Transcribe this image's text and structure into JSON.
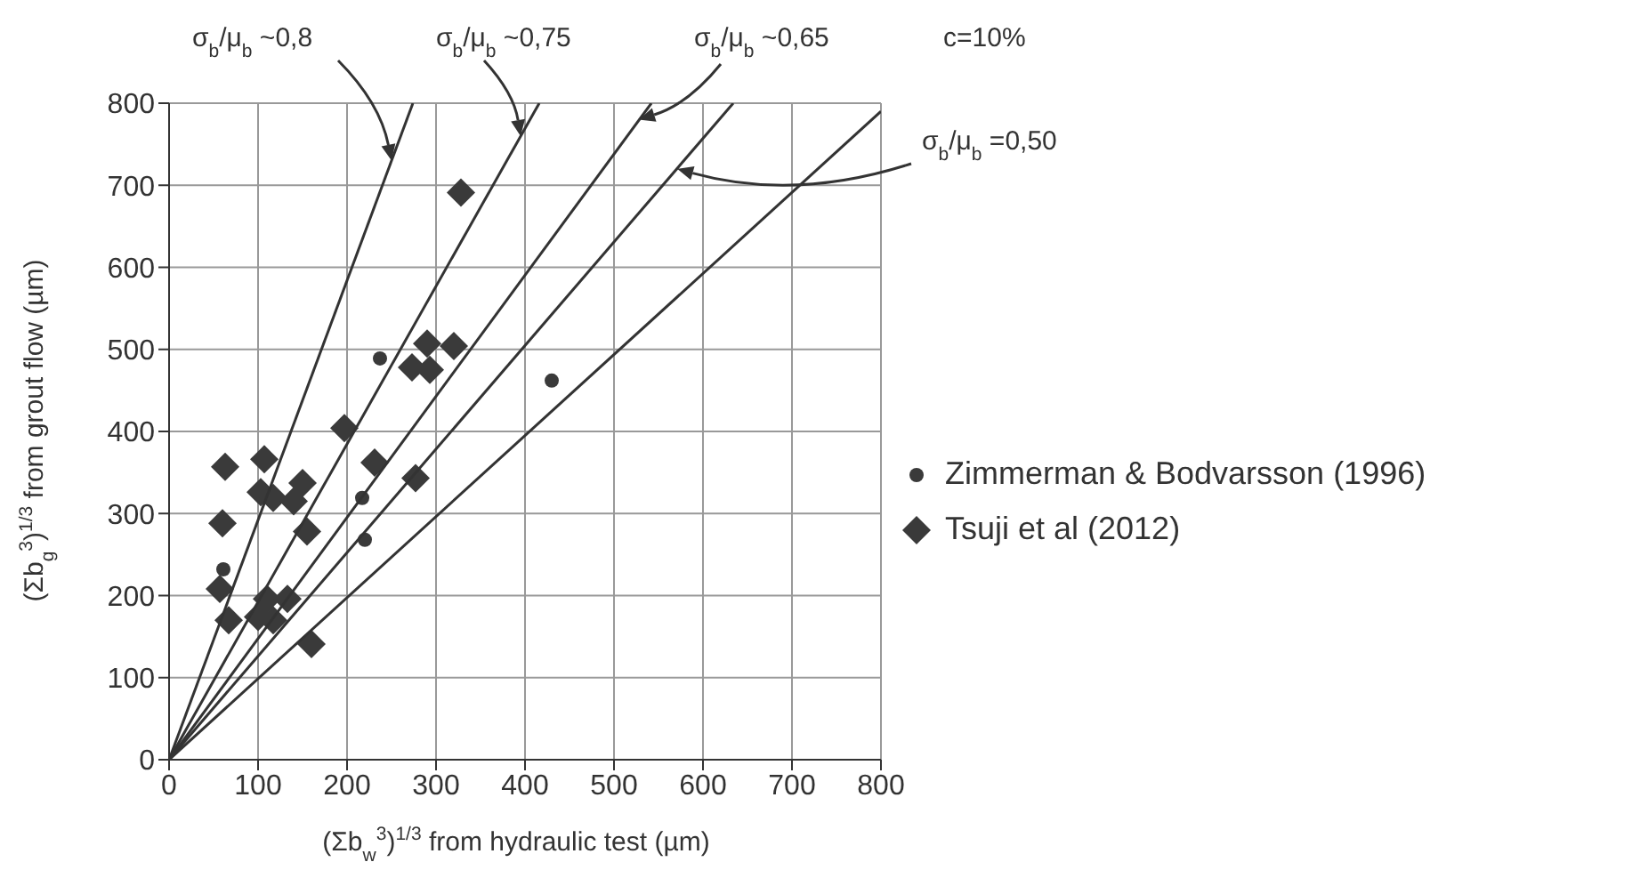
{
  "chart_data": {
    "type": "scatter",
    "xlabel": "(Σb$_{w}$$^{3}$)$^{1/3}$ from hydraulic test (µm)",
    "ylabel": "(Σb$_{g}$$^{3}$)$^{1/3}$ from grout flow (µm)",
    "xlim": [
      0,
      800
    ],
    "ylim": [
      0,
      800
    ],
    "xticks": [
      0,
      100,
      200,
      300,
      400,
      500,
      600,
      700,
      800
    ],
    "yticks": [
      0,
      100,
      200,
      300,
      400,
      500,
      600,
      700,
      800
    ],
    "grid": true,
    "legend": "right",
    "annotations": [
      {
        "text": "σ$_{b}$/μ$_{b}$ ~0,8",
        "x": 250,
        "y": 730
      },
      {
        "text": "σ$_{b}$/μ$_{b}$ ~0,75",
        "x": 395,
        "y": 760
      },
      {
        "text": "σ$_{b}$/μ$_{b}$ ~0,65",
        "x": 528,
        "y": 780
      },
      {
        "text": "σ$_{b}$/μ$_{b}$ =0,50",
        "x": 571,
        "y": 720
      },
      "c=10%"
    ],
    "series": [
      {
        "name": "Zimmerman & Bodvarsson (1996)",
        "color": "#3a3a3a",
        "marker": "circle",
        "x": [
          237,
          217,
          220,
          61,
          430
        ],
        "values": [
          489,
          319,
          268,
          232,
          462
        ]
      },
      {
        "name": "Tsuji et al (2012)",
        "color": "#3a3a3a",
        "marker": "diamond",
        "x": [
          63,
          107,
          60,
          103,
          117,
          150,
          140,
          197,
          231,
          277,
          155,
          57,
          67,
          100,
          110,
          133,
          117,
          160,
          273,
          290,
          293,
          320,
          328
        ],
        "values": [
          357,
          366,
          288,
          326,
          319,
          337,
          315,
          404,
          362,
          343,
          278,
          208,
          170,
          174,
          196,
          196,
          170,
          141,
          478,
          507,
          475,
          504,
          691
        ]
      },
      {
        "type": "line",
        "color": "#333333",
        "marker": "none",
        "x": [
          0,
          274
        ],
        "values": [
          0,
          800
        ]
      },
      {
        "type": "line",
        "color": "#333333",
        "marker": "none",
        "x": [
          0,
          416
        ],
        "values": [
          0,
          800
        ]
      },
      {
        "type": "line",
        "color": "#333333",
        "marker": "none",
        "x": [
          0,
          542
        ],
        "values": [
          0,
          800
        ]
      },
      {
        "type": "line",
        "color": "#333333",
        "marker": "none",
        "x": [
          0,
          634
        ],
        "values": [
          0,
          800
        ]
      },
      {
        "type": "line",
        "color": "#333333",
        "marker": "none",
        "x": [
          0,
          800
        ],
        "values": [
          0,
          790
        ]
      }
    ]
  }
}
